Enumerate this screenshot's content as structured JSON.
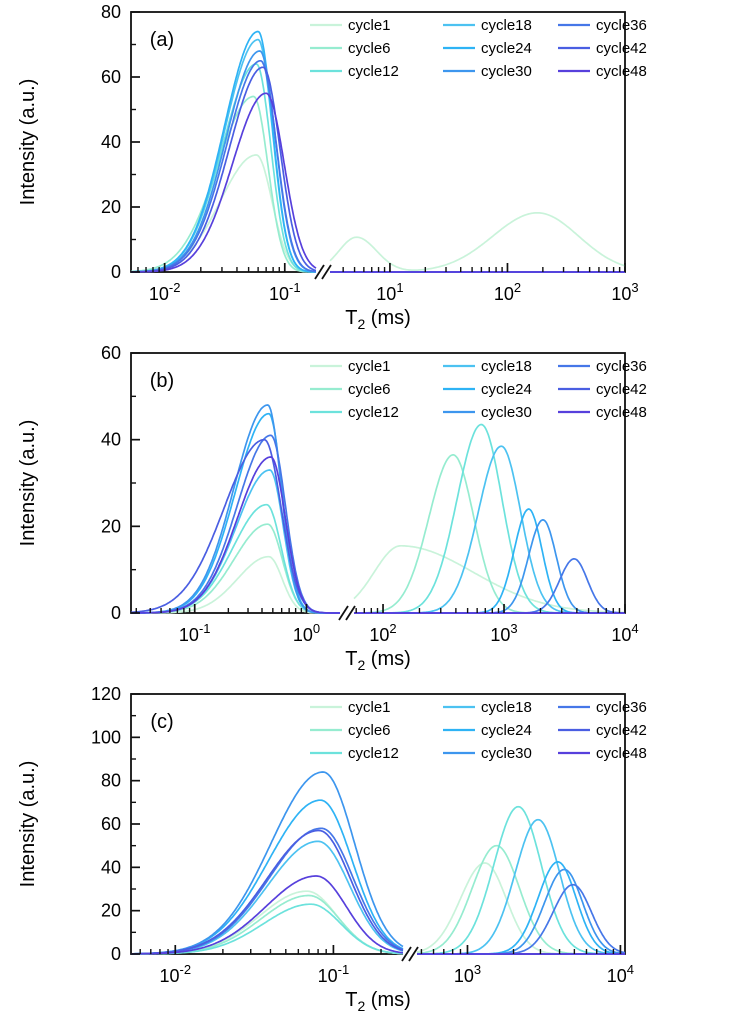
{
  "figure": {
    "ylabel": "Intensity (a.u.)",
    "xlabel": "T2 (ms)",
    "xlabel_parts": {
      "base": "T",
      "sub": "2",
      "rest": " (ms)"
    }
  },
  "legend": {
    "columns": [
      [
        "cycle1",
        "cycle6",
        "cycle12"
      ],
      [
        "cycle18",
        "cycle24",
        "cycle30"
      ],
      [
        "cycle36",
        "cycle42",
        "cycle48"
      ]
    ]
  },
  "series_colors": {
    "cycle1": "#c9f3da",
    "cycle6": "#96ecd0",
    "cycle12": "#6ce2dc",
    "cycle18": "#4cc2f1",
    "cycle24": "#2eb3f5",
    "cycle30": "#3d96ee",
    "cycle36": "#4677e8",
    "cycle42": "#4a5ee2",
    "cycle48": "#5740dc"
  },
  "chart_data": [
    {
      "type": "line",
      "panel_label": "(a)",
      "ylabel": "Intensity (a.u.)",
      "xlabel": "T2 (ms)",
      "ylim": [
        0,
        80
      ],
      "yticks": [
        0,
        20,
        40,
        60,
        80
      ],
      "x_axis_break": true,
      "x_segments": [
        {
          "log_min": -2.28,
          "log_max": -0.74,
          "tick_exponents": [
            -2,
            -1
          ],
          "tick_labels": [
            "10^-2",
            "10^-1"
          ]
        },
        {
          "log_min": 0.49,
          "log_max": 3.0,
          "tick_exponents": [
            1,
            2,
            3
          ],
          "tick_labels": [
            "10^1",
            "10^2",
            "10^3"
          ]
        }
      ],
      "series": [
        {
          "name": "cycle1",
          "peaks": [
            {
              "center_ms": 0.058,
              "height": 36,
              "sigma_left": 0.3,
              "sigma_right": 0.13
            },
            {
              "center_ms": 5.2,
              "height": 10.7,
              "sigma_left": 0.15,
              "sigma_right": 0.17
            },
            {
              "center_ms": 180,
              "height": 18.2,
              "sigma_left": 0.38,
              "sigma_right": 0.35
            }
          ]
        },
        {
          "name": "cycle6",
          "peaks": [
            {
              "center_ms": 0.055,
              "height": 54,
              "sigma_left": 0.3,
              "sigma_right": 0.12
            }
          ]
        },
        {
          "name": "cycle12",
          "peaks": [
            {
              "center_ms": 0.058,
              "height": 64,
              "sigma_left": 0.28,
              "sigma_right": 0.12
            }
          ]
        },
        {
          "name": "cycle18",
          "peaks": [
            {
              "center_ms": 0.06,
              "height": 71.5,
              "sigma_left": 0.28,
              "sigma_right": 0.12
            }
          ]
        },
        {
          "name": "cycle24",
          "peaks": [
            {
              "center_ms": 0.06,
              "height": 74,
              "sigma_left": 0.28,
              "sigma_right": 0.12
            }
          ]
        },
        {
          "name": "cycle30",
          "peaks": [
            {
              "center_ms": 0.062,
              "height": 68,
              "sigma_left": 0.28,
              "sigma_right": 0.13
            }
          ]
        },
        {
          "name": "cycle36",
          "peaks": [
            {
              "center_ms": 0.063,
              "height": 65,
              "sigma_left": 0.28,
              "sigma_right": 0.13
            }
          ]
        },
        {
          "name": "cycle42",
          "peaks": [
            {
              "center_ms": 0.066,
              "height": 63,
              "sigma_left": 0.28,
              "sigma_right": 0.14
            }
          ]
        },
        {
          "name": "cycle48",
          "peaks": [
            {
              "center_ms": 0.07,
              "height": 55,
              "sigma_left": 0.28,
              "sigma_right": 0.15
            }
          ]
        }
      ]
    },
    {
      "type": "line",
      "panel_label": "(b)",
      "ylabel": "Intensity (a.u.)",
      "xlabel": "T2 (ms)",
      "ylim": [
        0,
        60
      ],
      "yticks": [
        0,
        20,
        40,
        60
      ],
      "x_axis_break": true,
      "x_segments": [
        {
          "log_min": -1.57,
          "log_max": 0.3,
          "tick_exponents": [
            -1,
            0
          ],
          "tick_labels": [
            "10^-1",
            "10^0"
          ]
        },
        {
          "log_min": 1.76,
          "log_max": 4.0,
          "tick_exponents": [
            2,
            3,
            4
          ],
          "tick_labels": [
            "10^2",
            "10^3",
            "10^4"
          ]
        }
      ],
      "series": [
        {
          "name": "cycle1",
          "peaks": [
            {
              "center_ms": 0.46,
              "height": 13,
              "sigma_left": 0.28,
              "sigma_right": 0.12
            },
            {
              "center_ms": 140,
              "height": 15.5,
              "sigma_left": 0.22,
              "sigma_right": 0.6
            }
          ]
        },
        {
          "name": "cycle6",
          "peaks": [
            {
              "center_ms": 0.45,
              "height": 20.5,
              "sigma_left": 0.3,
              "sigma_right": 0.13
            },
            {
              "center_ms": 380,
              "height": 36.5,
              "sigma_left": 0.2,
              "sigma_right": 0.17
            }
          ]
        },
        {
          "name": "cycle12",
          "peaks": [
            {
              "center_ms": 0.44,
              "height": 25,
              "sigma_left": 0.3,
              "sigma_right": 0.13
            },
            {
              "center_ms": 650,
              "height": 43.5,
              "sigma_left": 0.2,
              "sigma_right": 0.17
            }
          ]
        },
        {
          "name": "cycle18",
          "peaks": [
            {
              "center_ms": 0.47,
              "height": 33,
              "sigma_left": 0.3,
              "sigma_right": 0.12
            },
            {
              "center_ms": 950,
              "height": 38.5,
              "sigma_left": 0.19,
              "sigma_right": 0.16
            }
          ]
        },
        {
          "name": "cycle24",
          "peaks": [
            {
              "center_ms": 0.46,
              "height": 46,
              "sigma_left": 0.3,
              "sigma_right": 0.12
            },
            {
              "center_ms": 1600,
              "height": 24,
              "sigma_left": 0.12,
              "sigma_right": 0.11
            }
          ]
        },
        {
          "name": "cycle30",
          "peaks": [
            {
              "center_ms": 0.45,
              "height": 48,
              "sigma_left": 0.3,
              "sigma_right": 0.12
            },
            {
              "center_ms": 2100,
              "height": 21.5,
              "sigma_left": 0.12,
              "sigma_right": 0.11
            }
          ]
        },
        {
          "name": "cycle36",
          "peaks": [
            {
              "center_ms": 0.48,
              "height": 41,
              "sigma_left": 0.3,
              "sigma_right": 0.13
            },
            {
              "center_ms": 3800,
              "height": 12.5,
              "sigma_left": 0.12,
              "sigma_right": 0.11
            }
          ]
        },
        {
          "name": "cycle42",
          "peaks": [
            {
              "center_ms": 0.42,
              "height": 40,
              "sigma_left": 0.36,
              "sigma_right": 0.15
            }
          ]
        },
        {
          "name": "cycle48",
          "peaks": [
            {
              "center_ms": 0.48,
              "height": 36,
              "sigma_left": 0.3,
              "sigma_right": 0.13
            }
          ]
        }
      ]
    },
    {
      "type": "line",
      "panel_label": "(c)",
      "ylabel": "Intensity (a.u.)",
      "xlabel": "T2 (ms)",
      "ylim": [
        0,
        120
      ],
      "yticks": [
        0,
        20,
        40,
        60,
        80,
        100,
        120
      ],
      "x_axis_break": true,
      "x_segments": [
        {
          "log_min": -2.28,
          "log_max": -0.56,
          "tick_exponents": [
            -2,
            -1
          ],
          "tick_labels": [
            "10^-2",
            "10^-1"
          ]
        },
        {
          "log_min": 2.67,
          "log_max": 4.03,
          "tick_exponents": [
            3,
            4
          ],
          "tick_labels": [
            "10^3",
            "10^4"
          ]
        }
      ],
      "series": [
        {
          "name": "cycle1",
          "peaks": [
            {
              "center_ms": 0.068,
              "height": 29,
              "sigma_left": 0.3,
              "sigma_right": 0.19
            },
            {
              "center_ms": 1300,
              "height": 42,
              "sigma_left": 0.16,
              "sigma_right": 0.14
            }
          ]
        },
        {
          "name": "cycle6",
          "peaks": [
            {
              "center_ms": 0.07,
              "height": 27,
              "sigma_left": 0.3,
              "sigma_right": 0.19
            },
            {
              "center_ms": 1550,
              "height": 50,
              "sigma_left": 0.16,
              "sigma_right": 0.15
            }
          ]
        },
        {
          "name": "cycle12",
          "peaks": [
            {
              "center_ms": 0.072,
              "height": 23,
              "sigma_left": 0.3,
              "sigma_right": 0.19
            },
            {
              "center_ms": 2150,
              "height": 68,
              "sigma_left": 0.16,
              "sigma_right": 0.15
            }
          ]
        },
        {
          "name": "cycle18",
          "peaks": [
            {
              "center_ms": 0.08,
              "height": 52,
              "sigma_left": 0.32,
              "sigma_right": 0.2
            },
            {
              "center_ms": 2900,
              "height": 62,
              "sigma_left": 0.15,
              "sigma_right": 0.14
            }
          ]
        },
        {
          "name": "cycle24",
          "peaks": [
            {
              "center_ms": 0.083,
              "height": 71,
              "sigma_left": 0.33,
              "sigma_right": 0.2
            },
            {
              "center_ms": 3900,
              "height": 42.5,
              "sigma_left": 0.13,
              "sigma_right": 0.12
            }
          ]
        },
        {
          "name": "cycle30",
          "peaks": [
            {
              "center_ms": 0.086,
              "height": 84,
              "sigma_left": 0.33,
              "sigma_right": 0.2
            },
            {
              "center_ms": 4300,
              "height": 39,
              "sigma_left": 0.13,
              "sigma_right": 0.12
            }
          ]
        },
        {
          "name": "cycle36",
          "peaks": [
            {
              "center_ms": 0.084,
              "height": 58,
              "sigma_left": 0.33,
              "sigma_right": 0.2
            },
            {
              "center_ms": 4900,
              "height": 32,
              "sigma_left": 0.13,
              "sigma_right": 0.12
            }
          ]
        },
        {
          "name": "cycle42",
          "peaks": [
            {
              "center_ms": 0.081,
              "height": 57,
              "sigma_left": 0.33,
              "sigma_right": 0.2
            }
          ]
        },
        {
          "name": "cycle48",
          "peaks": [
            {
              "center_ms": 0.078,
              "height": 36,
              "sigma_left": 0.32,
              "sigma_right": 0.19
            }
          ]
        }
      ]
    }
  ]
}
